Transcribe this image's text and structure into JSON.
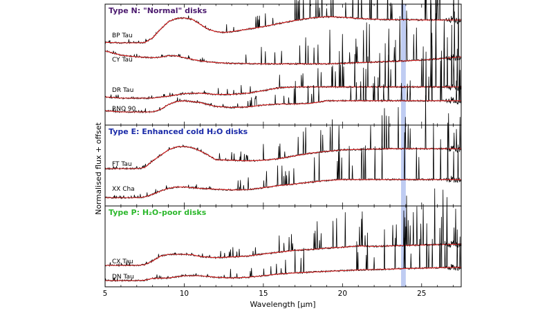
{
  "chart_data": {
    "type": "line",
    "xlabel": "Wavelength [μm]",
    "ylabel": "Normalised flux + offset",
    "xlim": [
      5,
      27.5
    ],
    "x_ticks": [
      5,
      10,
      15,
      20,
      25
    ],
    "highlight_band": {
      "x": [
        23.7,
        24.0
      ],
      "color": "#aabbee"
    },
    "colors": {
      "data": "#000000",
      "model": "#e02020",
      "typeN": "#4b1a6e",
      "typeE": "#1a2aa8",
      "typeP": "#2db82d"
    },
    "panels": [
      {
        "title": "Type N: \"Normal\" disks",
        "title_color": "#4b1a6e",
        "series": [
          {
            "name": "BP Tau",
            "x": [
              5,
              6,
              7,
              7.5,
              8,
              8.5,
              9,
              9.5,
              10,
              10.5,
              11,
              11.5,
              12,
              12.5,
              13,
              14,
              15,
              16,
              17,
              18,
              19,
              20,
              21,
              22,
              23,
              24,
              25,
              26,
              27.5
            ],
            "y": [
              0.02,
              0.0,
              0.0,
              0.01,
              0.2,
              0.55,
              0.85,
              0.98,
              1.0,
              0.95,
              0.75,
              0.55,
              0.45,
              0.42,
              0.45,
              0.55,
              0.65,
              0.78,
              0.9,
              1.0,
              1.05,
              1.03,
              0.98,
              0.95,
              0.93,
              0.93,
              0.92,
              0.92,
              0.92
            ]
          },
          {
            "name": "CY Tau",
            "x": [
              5,
              6,
              7,
              8,
              8.5,
              9,
              9.5,
              10,
              10.5,
              11,
              11.5,
              12,
              13,
              14,
              15,
              16,
              17,
              18,
              19,
              20,
              21,
              22,
              23,
              24,
              25,
              26,
              27.5
            ],
            "y": [
              0.62,
              0.45,
              0.38,
              0.35,
              0.36,
              0.43,
              0.42,
              0.35,
              0.28,
              0.22,
              0.18,
              0.15,
              0.12,
              0.11,
              0.1,
              0.1,
              0.1,
              0.1,
              0.1,
              0.12,
              0.15,
              0.17,
              0.2,
              0.22,
              0.25,
              0.3,
              0.38
            ]
          },
          {
            "name": "DR Tau",
            "x": [
              5,
              6,
              7,
              8,
              9,
              10,
              11,
              12,
              13,
              14,
              15,
              16,
              17,
              18,
              19,
              20,
              21,
              22,
              23,
              24,
              25,
              26,
              27.5
            ],
            "y": [
              0.05,
              0.0,
              0.0,
              0.0,
              0.08,
              0.18,
              0.2,
              0.15,
              0.15,
              0.2,
              0.3,
              0.42,
              0.45,
              0.45,
              0.45,
              0.45,
              0.45,
              0.45,
              0.45,
              0.45,
              0.45,
              0.45,
              0.45
            ]
          },
          {
            "name": "RNO 90",
            "x": [
              5,
              6,
              7,
              8,
              8.5,
              9,
              9.5,
              10,
              11,
              12,
              13,
              14,
              15,
              16,
              17,
              18,
              19,
              20,
              21,
              22,
              23,
              24,
              25,
              26,
              27.5
            ],
            "y": [
              0.05,
              0.0,
              0.0,
              0.0,
              0.1,
              0.3,
              0.42,
              0.45,
              0.38,
              0.22,
              0.18,
              0.2,
              0.28,
              0.32,
              0.32,
              0.35,
              0.45,
              0.45,
              0.45,
              0.45,
              0.45,
              0.45,
              0.45,
              0.45,
              0.45
            ]
          }
        ]
      },
      {
        "title": "Type E: Enhanced cold H₂O disks",
        "title_color": "#1a2aa8",
        "series": [
          {
            "name": "FT Tau",
            "x": [
              5,
              6,
              7,
              7.5,
              8,
              8.5,
              9,
              9.5,
              10,
              10.5,
              11,
              11.5,
              12,
              13,
              14,
              15,
              16,
              17,
              18,
              19,
              20,
              21,
              22,
              23,
              24,
              25,
              26,
              27.5
            ],
            "y": [
              0.0,
              0.0,
              0.0,
              0.05,
              0.35,
              0.6,
              0.85,
              0.98,
              1.0,
              0.95,
              0.8,
              0.62,
              0.4,
              0.38,
              0.35,
              0.38,
              0.45,
              0.58,
              0.7,
              0.78,
              0.85,
              0.87,
              0.88,
              0.9,
              0.9,
              0.9,
              0.9,
              0.9
            ]
          },
          {
            "name": "XX Cha",
            "x": [
              5,
              6,
              7,
              7.5,
              8,
              8.5,
              9,
              9.5,
              10,
              10.5,
              11,
              12,
              13,
              14,
              15,
              16,
              17,
              18,
              19,
              20,
              21,
              22,
              23,
              24,
              25,
              26,
              27.5
            ],
            "y": [
              0.0,
              0.0,
              0.0,
              0.03,
              0.15,
              0.3,
              0.42,
              0.48,
              0.48,
              0.45,
              0.42,
              0.38,
              0.35,
              0.36,
              0.45,
              0.55,
              0.62,
              0.7,
              0.78,
              0.82,
              0.82,
              0.82,
              0.82,
              0.82,
              0.82,
              0.82,
              0.82
            ]
          }
        ]
      },
      {
        "title": "Type P: H₂O-poor disks",
        "title_color": "#2db82d",
        "series": [
          {
            "name": "CX Tau",
            "x": [
              5,
              6,
              7,
              7.5,
              8,
              8.5,
              9,
              9.5,
              10,
              10.5,
              11,
              12,
              13,
              14,
              15,
              16,
              17,
              18,
              19,
              20,
              21,
              22,
              23,
              24,
              25,
              26,
              27.5
            ],
            "y": [
              0.0,
              0.0,
              0.0,
              0.03,
              0.2,
              0.42,
              0.5,
              0.5,
              0.5,
              0.48,
              0.4,
              0.35,
              0.38,
              0.42,
              0.52,
              0.6,
              0.68,
              0.72,
              0.78,
              0.82,
              0.88,
              0.86,
              0.88,
              0.9,
              0.92,
              0.94,
              0.96
            ]
          },
          {
            "name": "DN Tau",
            "x": [
              5,
              6,
              7,
              7.5,
              8,
              9,
              10,
              11,
              12,
              13,
              14,
              15,
              16,
              17,
              18,
              19,
              20,
              21,
              22,
              23,
              24,
              25,
              26,
              27.5
            ],
            "y": [
              0.0,
              0.0,
              0.0,
              0.02,
              0.1,
              0.12,
              0.22,
              0.22,
              0.15,
              0.12,
              0.15,
              0.22,
              0.3,
              0.35,
              0.38,
              0.42,
              0.45,
              0.48,
              0.5,
              0.52,
              0.55,
              0.56,
              0.58,
              0.6
            ]
          }
        ]
      }
    ]
  }
}
